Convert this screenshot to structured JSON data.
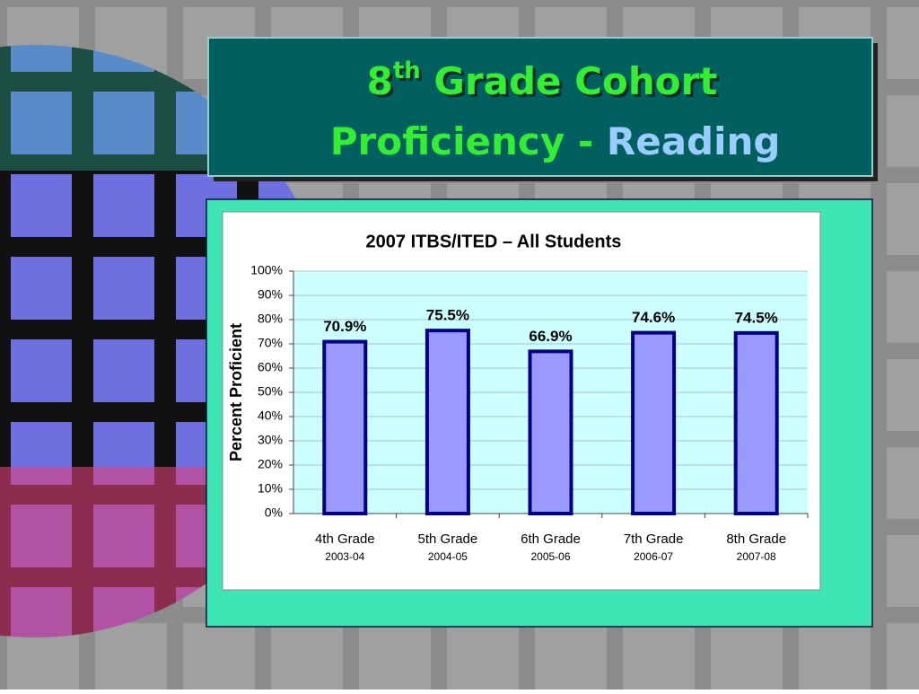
{
  "slide": {
    "title_number": "8",
    "title_superscript": "th",
    "title_line1_rest": " Grade Cohort",
    "title_line2_start": "Proficiency - ",
    "title_line2_highlight": "Reading"
  },
  "chart_data": {
    "type": "bar",
    "title": "2007 ITBS/ITED – All Students",
    "y_label": "Percent Proficient",
    "categories": [
      "4th Grade",
      "5th Grade",
      "6th Grade",
      "7th Grade",
      "8th Grade"
    ],
    "category_sublabels": [
      "2003-04",
      "2004-05",
      "2005-06",
      "2006-07",
      "2007-08"
    ],
    "values": [
      70.9,
      75.5,
      66.9,
      74.6,
      74.5
    ],
    "value_labels": [
      "70.9%",
      "75.5%",
      "66.9%",
      "74.6%",
      "74.5%"
    ],
    "color": "#9999ff",
    "edge_color": "#000080",
    "ylim": [
      0,
      100
    ],
    "yticks": [
      {
        "value": 0,
        "label": "0%"
      },
      {
        "value": 10,
        "label": "10%"
      },
      {
        "value": 20,
        "label": "20%"
      },
      {
        "value": 30,
        "label": "30%"
      },
      {
        "value": 40,
        "label": "40%"
      },
      {
        "value": 50,
        "label": "50%"
      },
      {
        "value": 60,
        "label": "60%"
      },
      {
        "value": 70,
        "label": "70%"
      },
      {
        "value": 80,
        "label": "80%"
      },
      {
        "value": 90,
        "label": "90%"
      },
      {
        "value": 100,
        "label": "100%"
      }
    ],
    "grid": true
  }
}
